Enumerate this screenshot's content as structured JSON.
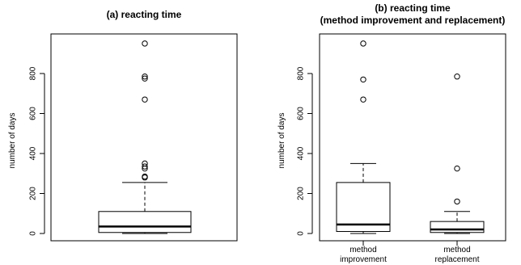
{
  "chart_data": [
    {
      "type": "box",
      "title": "(a) reacting time",
      "xlabel": "",
      "ylabel": "number of days",
      "ylim": [
        0,
        960
      ],
      "yticks": [
        0,
        200,
        400,
        600,
        800
      ],
      "categories": [
        ""
      ],
      "boxes": [
        {
          "label": "",
          "whisker_low": 0,
          "q1": 5,
          "median": 35,
          "q3": 110,
          "whisker_high": 255,
          "outliers": [
            280,
            285,
            325,
            335,
            350,
            670,
            775,
            785,
            950
          ]
        }
      ]
    },
    {
      "type": "box",
      "title_lines": [
        "(b) reacting time",
        "(method improvement and replacement)"
      ],
      "xlabel": "",
      "ylabel": "number of days",
      "ylim": [
        0,
        960
      ],
      "yticks": [
        0,
        200,
        400,
        600,
        800
      ],
      "categories": [
        [
          "method",
          "improvement"
        ],
        [
          "method",
          "replacement"
        ]
      ],
      "boxes": [
        {
          "label": "method improvement",
          "whisker_low": 0,
          "q1": 10,
          "median": 45,
          "q3": 255,
          "whisker_high": 350,
          "outliers": [
            670,
            770,
            950
          ]
        },
        {
          "label": "method replacement",
          "whisker_low": 0,
          "q1": 5,
          "median": 20,
          "q3": 60,
          "whisker_high": 110,
          "outliers": [
            160,
            325,
            785
          ]
        }
      ]
    }
  ]
}
